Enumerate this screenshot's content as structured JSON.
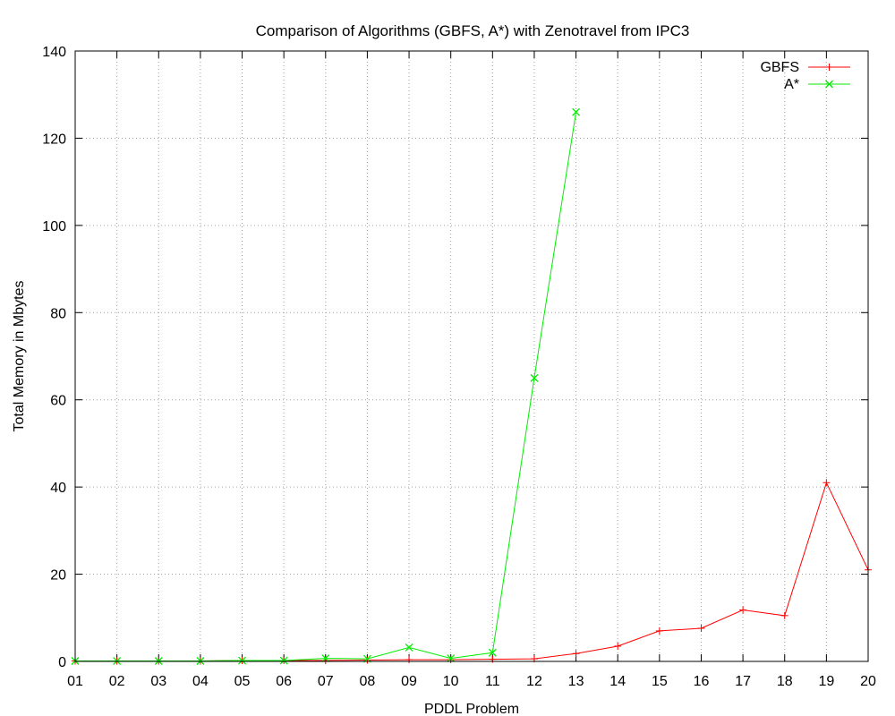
{
  "chart_data": {
    "type": "line",
    "title": "Comparison of Algorithms (GBFS, A*) with Zenotravel from IPC3",
    "xlabel": "PDDL Problem",
    "ylabel": "Total Memory in Mbytes",
    "categories": [
      "01",
      "02",
      "03",
      "04",
      "05",
      "06",
      "07",
      "08",
      "09",
      "10",
      "11",
      "12",
      "13",
      "14",
      "15",
      "16",
      "17",
      "18",
      "19",
      "20"
    ],
    "ylim": [
      0,
      140
    ],
    "yticks": [
      0,
      20,
      40,
      60,
      80,
      100,
      120,
      140
    ],
    "grid": true,
    "legend_position": "top-right",
    "series": [
      {
        "name": "GBFS",
        "color": "#ff0000",
        "marker": "plus",
        "values": [
          0.1,
          0.1,
          0.1,
          0.1,
          0.2,
          0.2,
          0.2,
          0.3,
          0.4,
          0.4,
          0.5,
          0.6,
          1.8,
          3.5,
          7.0,
          7.6,
          11.8,
          10.5,
          41.0,
          21.0
        ]
      },
      {
        "name": "A*",
        "color": "#00ee00",
        "marker": "cross",
        "values": [
          0.1,
          0.1,
          0.1,
          0.1,
          0.2,
          0.2,
          0.7,
          0.6,
          3.2,
          0.7,
          2.0,
          65.0,
          126.0,
          null,
          null,
          null,
          null,
          null,
          null,
          null
        ]
      }
    ]
  }
}
